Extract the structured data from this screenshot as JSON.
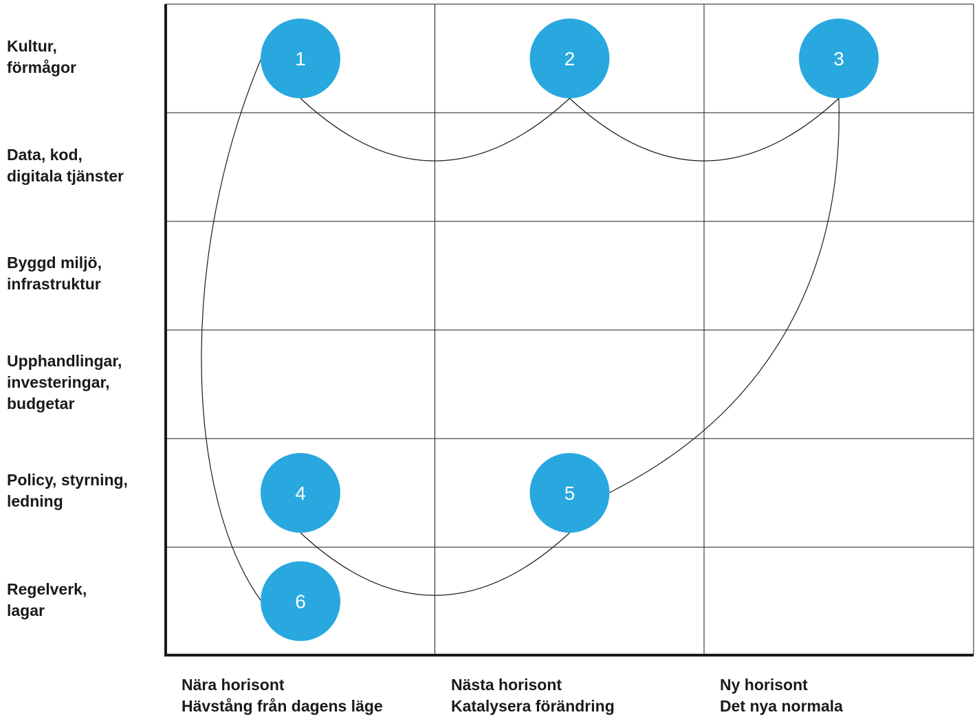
{
  "rows": [
    {
      "id": "culture",
      "label": "Kultur,\nförmågor"
    },
    {
      "id": "data",
      "label": "Data, kod,\ndigitala tjänster"
    },
    {
      "id": "built",
      "label": "Byggd miljö,\ninfrastruktur"
    },
    {
      "id": "procurement",
      "label": "Upphandlingar,\ninvesteringar,\nbudgetar"
    },
    {
      "id": "policy",
      "label": "Policy, styrning,\nledning"
    },
    {
      "id": "regulation",
      "label": "Regelverk,\nlagar"
    }
  ],
  "columns": [
    {
      "id": "near",
      "title": "Nära horisont",
      "subtitle": "Hävstång från dagens läge"
    },
    {
      "id": "next",
      "title": "Nästa horisont",
      "subtitle": "Katalysera förändring"
    },
    {
      "id": "new",
      "title": "Ny horisont",
      "subtitle": "Det nya normala"
    }
  ],
  "nodes": [
    {
      "label": "1",
      "row": 0,
      "column": 0
    },
    {
      "label": "2",
      "row": 0,
      "column": 1
    },
    {
      "label": "3",
      "row": 0,
      "column": 2
    },
    {
      "label": "4",
      "row": 4,
      "column": 0
    },
    {
      "label": "5",
      "row": 4,
      "column": 1
    },
    {
      "label": "6",
      "row": 5,
      "column": 0
    }
  ],
  "connections": [
    {
      "from": "1",
      "to": "2"
    },
    {
      "from": "2",
      "to": "3"
    },
    {
      "from": "3",
      "to": "5"
    },
    {
      "from": "5",
      "to": "4"
    },
    {
      "from": "1",
      "to": "6"
    }
  ],
  "colors": {
    "node_fill": "#29a8df",
    "node_text": "#ffffff",
    "lines": "#1a1a1a"
  }
}
